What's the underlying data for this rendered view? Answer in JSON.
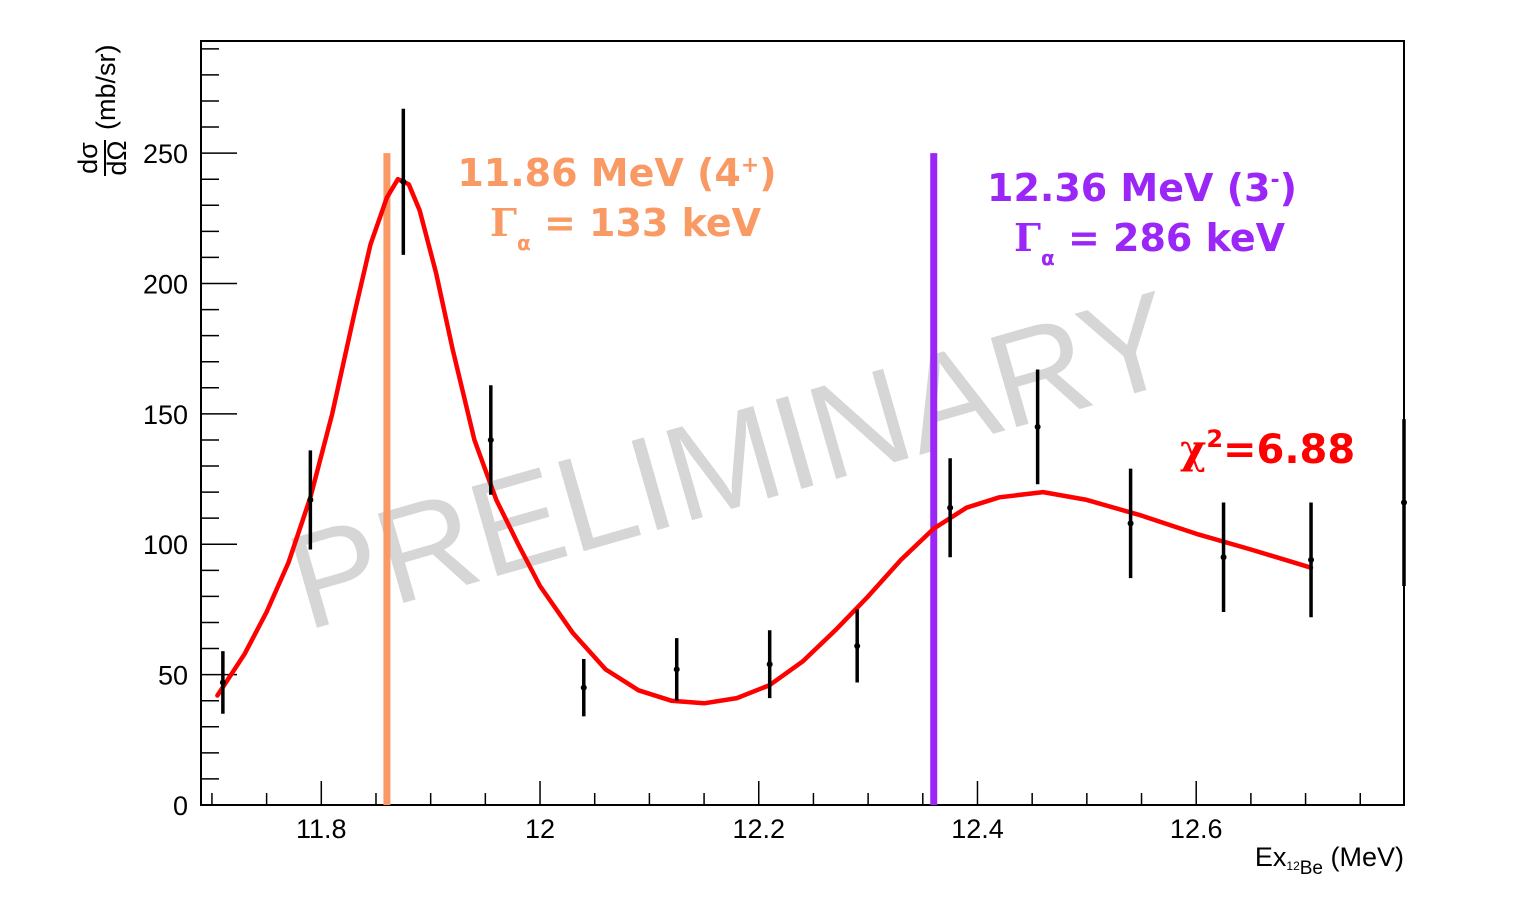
{
  "chart_data": {
    "type": "scatter",
    "watermark": "PRELIMINARY",
    "x_axis": {
      "label_main": "Ex",
      "label_sub_super": "12",
      "label_sub_text": "Be",
      "label_unit": "(MeV)",
      "range": [
        11.69,
        12.79
      ],
      "ticks": [
        11.8,
        12,
        12.2,
        12.4,
        12.6
      ],
      "tick_labels": [
        "11.8",
        "12",
        "12.2",
        "12.4",
        "12.6"
      ],
      "minor_step": 0.05
    },
    "y_axis": {
      "label_num": "dσ",
      "label_den": "dΩ",
      "label_unit": "(mb/sr)",
      "range": [
        0,
        293
      ],
      "ticks": [
        0,
        50,
        100,
        150,
        200,
        250
      ],
      "tick_labels": [
        "0",
        "50",
        "100",
        "150",
        "200",
        "250"
      ],
      "minor_step": 10
    },
    "grid": false,
    "series": [
      {
        "kind": "data",
        "color": "#000000",
        "points": [
          {
            "x": 11.71,
            "y": 47,
            "err": 12
          },
          {
            "x": 11.79,
            "y": 117,
            "err": 19
          },
          {
            "x": 11.875,
            "y": 239,
            "err": 28
          },
          {
            "x": 11.955,
            "y": 140,
            "err": 21
          },
          {
            "x": 12.04,
            "y": 45,
            "err": 11
          },
          {
            "x": 12.125,
            "y": 52,
            "err": 12
          },
          {
            "x": 12.21,
            "y": 54,
            "err": 13
          },
          {
            "x": 12.29,
            "y": 61,
            "err": 14
          },
          {
            "x": 12.375,
            "y": 114,
            "err": 19
          },
          {
            "x": 12.455,
            "y": 145,
            "err": 22
          },
          {
            "x": 12.54,
            "y": 108,
            "err": 21
          },
          {
            "x": 12.625,
            "y": 95,
            "err": 21
          },
          {
            "x": 12.705,
            "y": 94,
            "err": 22
          },
          {
            "x": 12.79,
            "y": 116,
            "err": 32
          }
        ]
      },
      {
        "kind": "fit",
        "color": "#ff0000",
        "points": [
          [
            11.705,
            42
          ],
          [
            11.73,
            58
          ],
          [
            11.75,
            74
          ],
          [
            11.77,
            93
          ],
          [
            11.79,
            118
          ],
          [
            11.81,
            150
          ],
          [
            11.83,
            188
          ],
          [
            11.845,
            215
          ],
          [
            11.86,
            233
          ],
          [
            11.87,
            240
          ],
          [
            11.88,
            238
          ],
          [
            11.89,
            228
          ],
          [
            11.905,
            204
          ],
          [
            11.92,
            175
          ],
          [
            11.94,
            140
          ],
          [
            11.96,
            117
          ],
          [
            11.98,
            100
          ],
          [
            12.0,
            84
          ],
          [
            12.03,
            66
          ],
          [
            12.06,
            52
          ],
          [
            12.09,
            44
          ],
          [
            12.12,
            40
          ],
          [
            12.15,
            39
          ],
          [
            12.18,
            41
          ],
          [
            12.21,
            46
          ],
          [
            12.24,
            55
          ],
          [
            12.27,
            67
          ],
          [
            12.3,
            80
          ],
          [
            12.33,
            94
          ],
          [
            12.36,
            106
          ],
          [
            12.39,
            114
          ],
          [
            12.42,
            118
          ],
          [
            12.46,
            120
          ],
          [
            12.5,
            117
          ],
          [
            12.55,
            111
          ],
          [
            12.6,
            104
          ],
          [
            12.65,
            98
          ],
          [
            12.705,
            91
          ]
        ]
      }
    ],
    "markers": [
      {
        "x": 11.86,
        "y_top": 250,
        "color": "#f99a65",
        "energy_text": "11.86 MeV (4",
        "spin_sup": "+",
        "close_paren": ")",
        "gamma_symbol": "Γ",
        "gamma_sub": "α",
        "gamma_text": " = 133 keV"
      },
      {
        "x": 12.36,
        "y_top": 250,
        "color": "#9b26f8",
        "energy_text": "12.36 MeV (3",
        "spin_sup": "-",
        "close_paren": ")",
        "gamma_symbol": "Γ",
        "gamma_sub": "α",
        "gamma_text": " = 286 keV"
      }
    ],
    "chi2": {
      "symbol": "χ",
      "sup": "2",
      "value_text": "=6.88",
      "color": "#ff0000"
    }
  }
}
